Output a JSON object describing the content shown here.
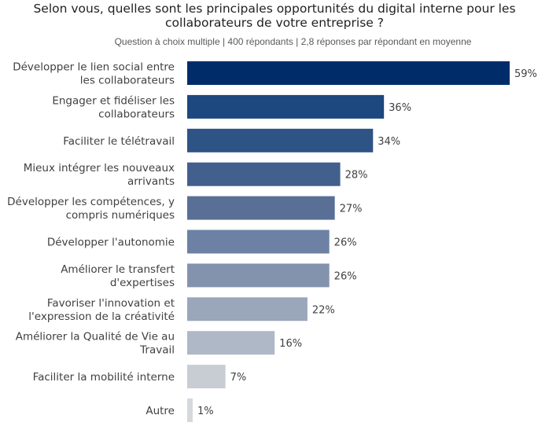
{
  "title": {
    "line1": "Selon vous, quelles sont les principales opportunités du digital interne pour les",
    "line2": "collaborateurs de votre entreprise ?"
  },
  "subtitle": "Question à choix multiple | 400 répondants | 2,8 réponses par répondant en moyenne",
  "chart_data": {
    "type": "bar",
    "orientation": "horizontal",
    "categories": [
      [
        "Développer le lien social entre",
        "les collaborateurs"
      ],
      [
        "Engager et fidéliser les",
        "collaborateurs"
      ],
      [
        "Faciliter le télétravail"
      ],
      [
        "Mieux intégrer les nouveaux",
        "arrivants"
      ],
      [
        "Développer les compétences, y",
        "compris numériques"
      ],
      [
        "Développer l'autonomie"
      ],
      [
        "Améliorer le transfert",
        "d'expertises"
      ],
      [
        "Favoriser l'innovation et",
        "l'expression de la créativité"
      ],
      [
        "Améliorer la Qualité de Vie au",
        "Travail"
      ],
      [
        "Faciliter la mobilité interne"
      ],
      [
        "Autre"
      ]
    ],
    "values": [
      59,
      36,
      34,
      28,
      27,
      26,
      26,
      22,
      16,
      7,
      1
    ],
    "value_labels": [
      "59%",
      "36%",
      "34%",
      "28%",
      "27%",
      "26%",
      "26%",
      "22%",
      "16%",
      "7%",
      "1%"
    ],
    "colors": [
      "#002d6a",
      "#1d477f",
      "#2e5385",
      "#425f8d",
      "#596f96",
      "#6c81a3",
      "#8393ae",
      "#9aa6b9",
      "#afb8c6",
      "#c8cdd3",
      "#d5d8dc"
    ],
    "xlim": [
      0,
      59
    ],
    "grid": false,
    "legend": "none"
  }
}
